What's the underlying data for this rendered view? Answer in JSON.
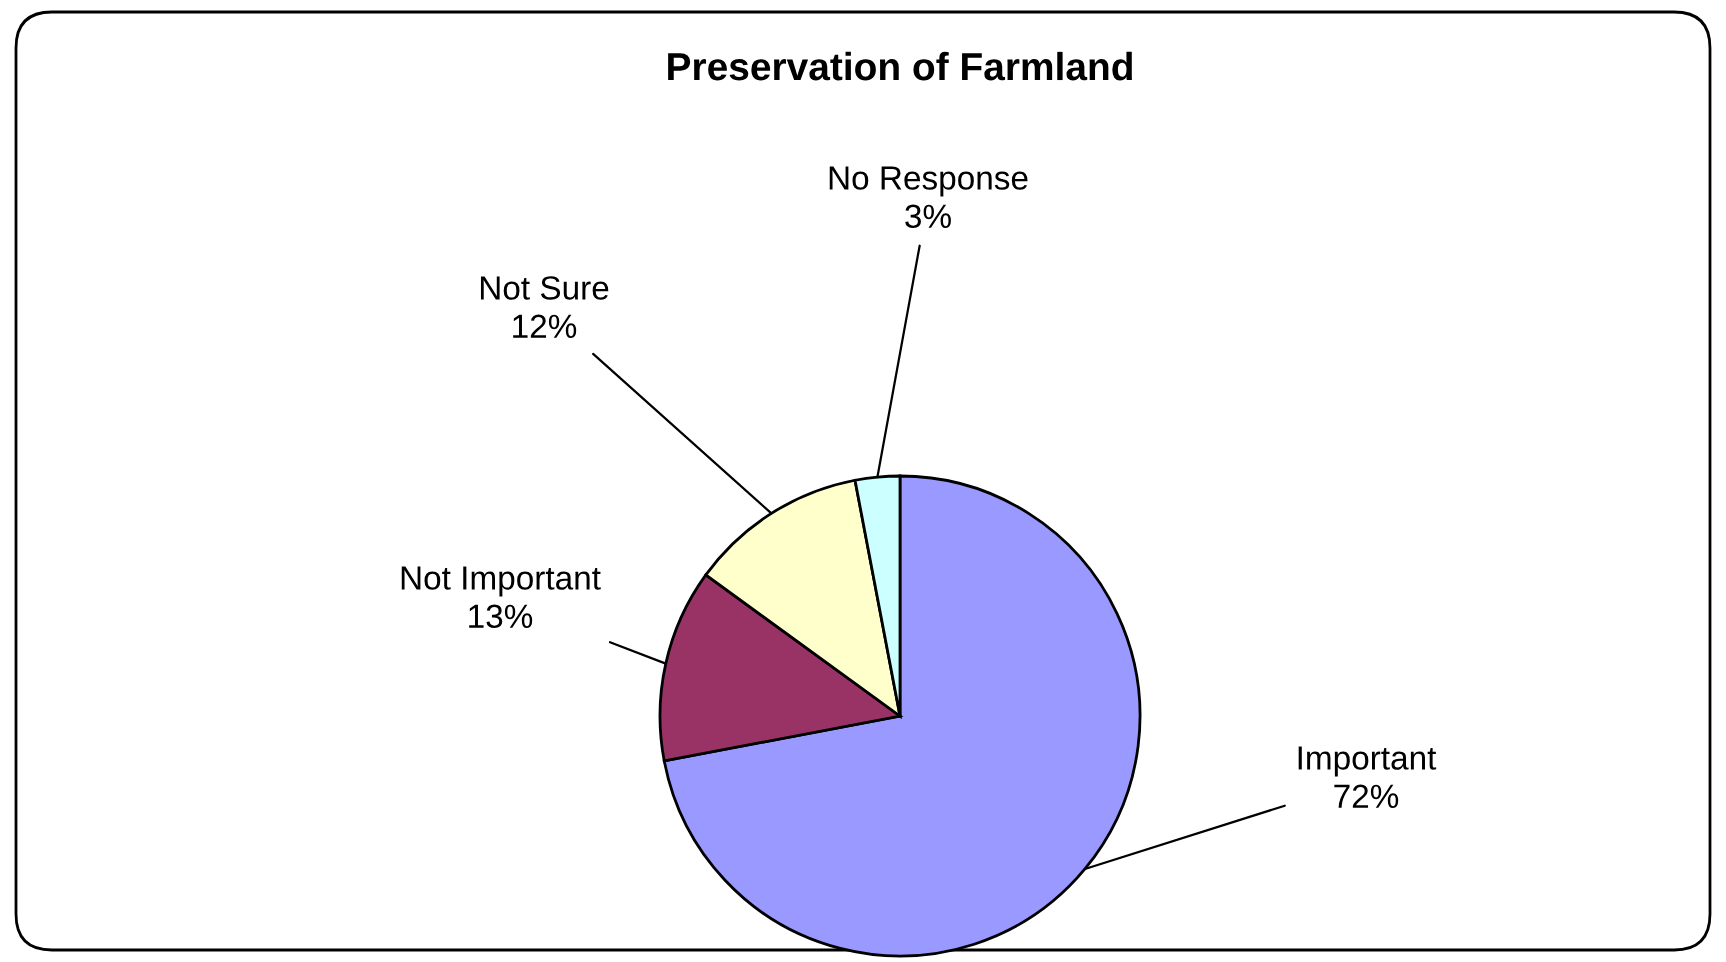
{
  "chart_data": {
    "type": "pie",
    "title": "Preservation of Farmland",
    "categories": [
      "Important",
      "Not Important",
      "Not Sure",
      "No Response"
    ],
    "values": [
      72,
      13,
      12,
      3
    ],
    "colors": [
      "#9999ff",
      "#993366",
      "#ffffcc",
      "#ccffff"
    ],
    "value_labels": [
      "72%",
      "13%",
      "12%",
      "3%"
    ],
    "legend": false
  }
}
